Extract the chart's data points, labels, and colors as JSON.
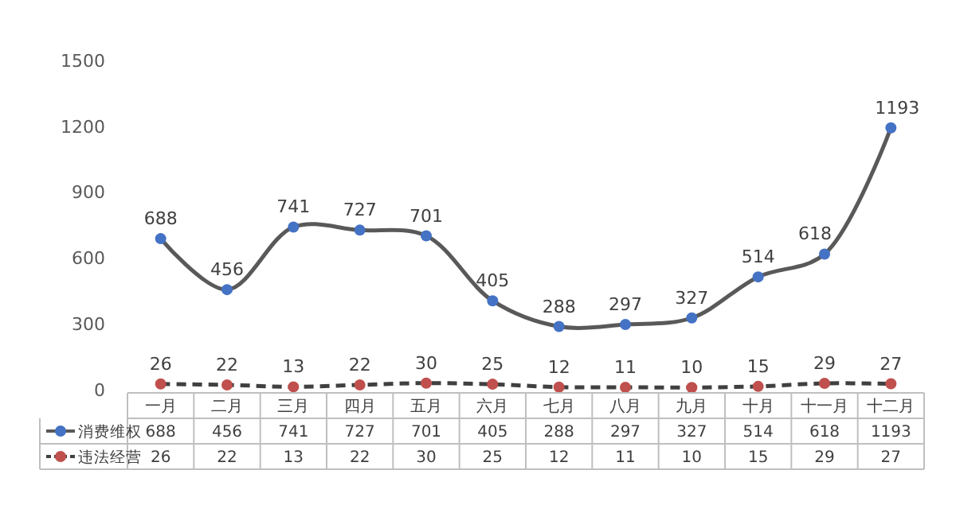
{
  "chart_data": {
    "type": "line",
    "categories": [
      "一月",
      "二月",
      "三月",
      "四月",
      "五月",
      "六月",
      "七月",
      "八月",
      "九月",
      "十月",
      "十一月",
      "十二月"
    ],
    "series": [
      {
        "name": "消费维权",
        "color": "#595959",
        "colors": [
          "#4472c4",
          "#4472c4",
          "#4472c4",
          "#4472c4",
          "#4472c4",
          "#4472c4",
          "#4472c4",
          "#4472c4",
          "#4472c4",
          "#4472c4",
          "#4472c4",
          "#4472c4"
        ],
        "line_style": "solid",
        "values": [
          688,
          456,
          741,
          727,
          701,
          405,
          288,
          297,
          327,
          514,
          618,
          1193
        ],
        "value_labels": [
          "688",
          "456",
          "741",
          "727",
          "701",
          "405",
          "288",
          "297",
          "327",
          "514",
          "618",
          "1193"
        ]
      },
      {
        "name": "违法经营",
        "color": "#404040",
        "colors": [
          "#c0504d",
          "#c0504d",
          "#c0504d",
          "#c0504d",
          "#c0504d",
          "#c0504d",
          "#c0504d",
          "#c0504d",
          "#c0504d",
          "#c0504d",
          "#c0504d",
          "#c0504d"
        ],
        "line_style": "dashed",
        "values": [
          26,
          22,
          13,
          22,
          30,
          25,
          12,
          11,
          10,
          15,
          29,
          27
        ],
        "value_labels": [
          "26",
          "22",
          "13",
          "22",
          "30",
          "25",
          "12",
          "11",
          "10",
          "15",
          "29",
          "27"
        ]
      }
    ],
    "ylim": [
      0,
      1500
    ],
    "yticks": [
      0,
      300,
      600,
      900,
      1200,
      1500
    ],
    "grid": false,
    "marker": "circle",
    "legend": "bottom",
    "annotations": [
      "688",
      "456",
      "741",
      "727",
      "701",
      "405",
      "288",
      "297",
      "327",
      "514",
      "618",
      "1193",
      "26",
      "22",
      "13",
      "22",
      "30",
      "25",
      "12",
      "11",
      "10",
      "15",
      "29",
      "27"
    ]
  }
}
